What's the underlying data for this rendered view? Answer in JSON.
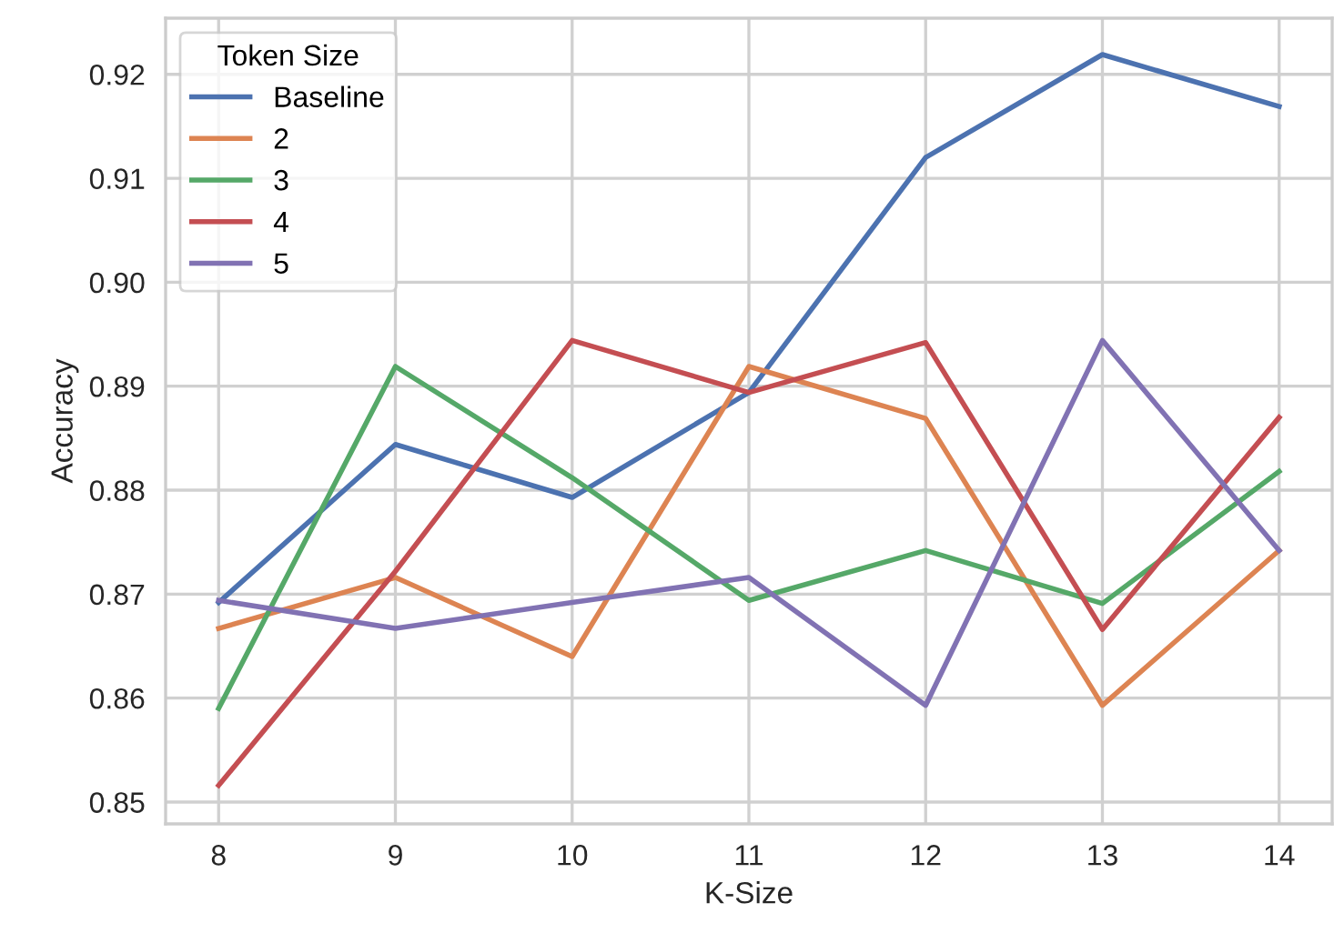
{
  "chart_data": {
    "type": "line",
    "xlabel": "K-Size",
    "ylabel": "Accuracy",
    "legend_title": "Token Size",
    "x": [
      8,
      9,
      10,
      11,
      12,
      13,
      14
    ],
    "series": [
      {
        "name": "Baseline",
        "color": "#4c72b0",
        "values": [
          0.8692,
          0.8844,
          0.8793,
          0.8894,
          0.912,
          0.9219,
          0.9169
        ]
      },
      {
        "name": "2",
        "color": "#dd8452",
        "values": [
          0.8667,
          0.8716,
          0.864,
          0.8919,
          0.8869,
          0.8593,
          0.8742
        ]
      },
      {
        "name": "3",
        "color": "#55a868",
        "values": [
          0.859,
          0.8919,
          0.8812,
          0.8694,
          0.8742,
          0.8691,
          0.8818
        ]
      },
      {
        "name": "4",
        "color": "#c44e52",
        "values": [
          0.8516,
          0.8722,
          0.8944,
          0.8894,
          0.8942,
          0.8666,
          0.887
        ]
      },
      {
        "name": "5",
        "color": "#8172b3",
        "values": [
          0.8694,
          0.8667,
          0.8692,
          0.8716,
          0.8593,
          0.8944,
          0.8742
        ]
      }
    ],
    "xlim": [
      7.7,
      14.3
    ],
    "ylim": [
      0.8479,
      0.9254
    ],
    "xticks": [
      8,
      9,
      10,
      11,
      12,
      13,
      14
    ],
    "yticks": [
      {
        "value": 0.85,
        "label": "0.85"
      },
      {
        "value": 0.86,
        "label": "0.86"
      },
      {
        "value": 0.87,
        "label": "0.87"
      },
      {
        "value": 0.88,
        "label": "0.88"
      },
      {
        "value": 0.89,
        "label": "0.89"
      },
      {
        "value": 0.9,
        "label": "0.90"
      },
      {
        "value": 0.91,
        "label": "0.91"
      },
      {
        "value": 0.92,
        "label": "0.92"
      }
    ],
    "grid": true,
    "legend": "top left",
    "marker": "none",
    "line_style": "solid"
  }
}
